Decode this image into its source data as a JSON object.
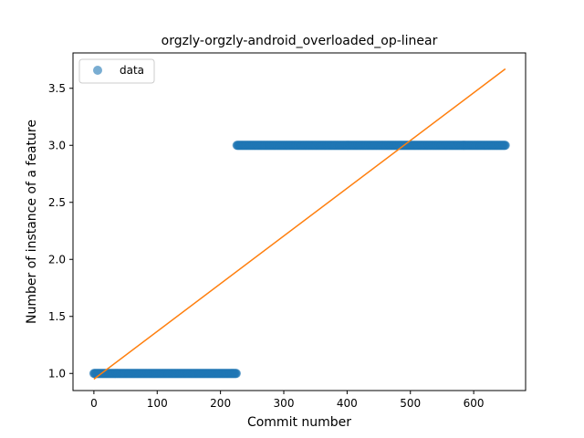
{
  "chart_data": {
    "type": "scatter",
    "title": "orgzly-orgzly-android_overloaded_op-linear",
    "xlabel": "Commit number",
    "ylabel": "Number of instance of a feature",
    "xlim": [
      -33,
      682
    ],
    "ylim": [
      0.85,
      3.81
    ],
    "xticks": [
      0,
      100,
      200,
      300,
      400,
      500,
      600
    ],
    "xtick_labels": [
      "0",
      "100",
      "200",
      "300",
      "400",
      "500",
      "600"
    ],
    "yticks": [
      1.0,
      1.5,
      2.0,
      2.5,
      3.0,
      3.5
    ],
    "ytick_labels": [
      "1.0",
      "1.5",
      "2.0",
      "2.5",
      "3.0",
      "3.5"
    ],
    "grid": false,
    "legend": {
      "placement": "upper-left",
      "entries": [
        "data"
      ]
    },
    "series": [
      {
        "name": "data",
        "kind": "scatter",
        "color": "#1f77b4",
        "segments": [
          {
            "x_start": 0,
            "x_end": 225,
            "y": 1
          },
          {
            "x_start": 226,
            "x_end": 650,
            "y": 3
          }
        ]
      },
      {
        "kind": "line",
        "color": "#ff7f0e",
        "x": [
          0,
          650
        ],
        "y": [
          0.95,
          3.67
        ]
      }
    ]
  }
}
